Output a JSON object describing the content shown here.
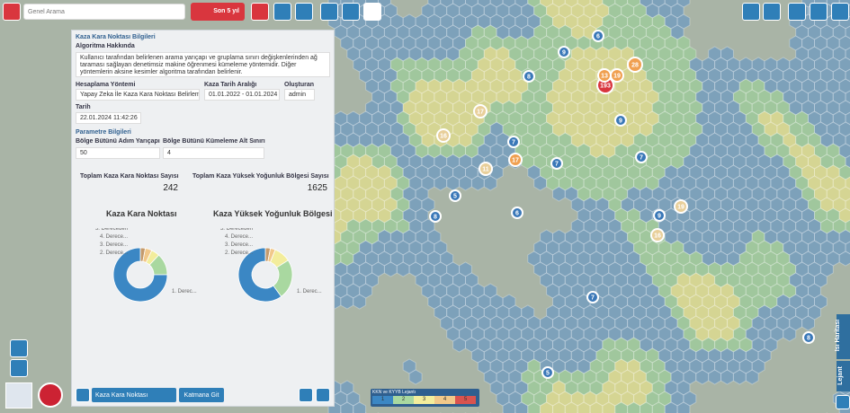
{
  "toolbar": {
    "search_placeholder": "Genel Arama",
    "period": "Son 5 yıl"
  },
  "panel": {
    "title": "Kaza Kara Noktası Bilgileri",
    "about_heading": "Algoritma Hakkında",
    "about_text": "Kullanıcı tarafından belirlenen arama yarıçapı ve gruplama sınırı değişkenlerinden ağ taraması sağlayan denetimsiz makine öğrenmesi kümeleme yöntemidir. Diğer yöntemlerin aksine kesimler algoritma tarafından belirlenir.",
    "method_label": "Hesaplama Yöntemi",
    "method_value": "Yapay Zeka İle Kaza Kara Noktası Belirleme",
    "date_range_label": "Kaza Tarih Aralığı",
    "date_range_value": "01.01.2022 - 01.01.2024",
    "creator_label": "Oluşturan",
    "creator_value": "admin",
    "date_label": "Tarih",
    "date_value": "22.01.2024 11:42:26",
    "params_heading": "Parametre Bilgileri",
    "radius_label": "Bölge Bütünü Adım Yarıçapı",
    "radius_value": "50",
    "min_cluster_label": "Bölge Bütünü Kümeleme Alt Sınırı",
    "min_cluster_value": "4",
    "total_kkn_label": "Toplam Kaza Kara Noktası Sayısı",
    "total_kkn_value": "242",
    "total_kyyb_label": "Toplam Kaza Yüksek Yoğunluk Bölgesi Sayısı",
    "total_kyyb_value": "1625"
  },
  "charts": [
    {
      "type": "pie",
      "title": "Kaza Kara Noktası",
      "labels": [
        "5. Dereceden",
        "4. Derece...",
        "3. Derece...",
        "2. Derece...",
        "1. Derec..."
      ],
      "values": [
        3,
        4,
        5,
        13,
        75
      ],
      "colors": [
        "#c49a6c",
        "#f1c88a",
        "#f3ed9c",
        "#a9d8a0",
        "#3b87c4"
      ]
    },
    {
      "type": "pie",
      "title": "Kaza Yüksek Yoğunluk Bölgesi",
      "labels": [
        "5. Dereceden",
        "4. Derece...",
        "3. Derece...",
        "2. Derece...",
        "1. Derec..."
      ],
      "values": [
        3,
        3,
        10,
        24,
        60
      ],
      "colors": [
        "#c49a6c",
        "#f1c88a",
        "#f3ed9c",
        "#a9d8a0",
        "#3b87c4"
      ]
    }
  ],
  "bottom_bar": {
    "layer": "Kaza Kara Noktası",
    "go_to_layer": "Katmana Git"
  },
  "side_tabs": [
    "Isı Haritası",
    "Lejant"
  ],
  "legend": {
    "title": "KKN ve KYYB Lejantı",
    "levels": [
      "1",
      "2",
      "3",
      "4",
      "5"
    ],
    "colors": [
      "#3b87c4",
      "#a9d8a0",
      "#f3ed9c",
      "#f1c88a",
      "#d9534f"
    ]
  },
  "map_clusters": [
    "193",
    "28",
    "13",
    "19",
    "9",
    "6",
    "8",
    "17",
    "11",
    "16",
    "16",
    "19",
    "7",
    "7",
    "9",
    "8",
    "7",
    "8",
    "5",
    "5",
    "7",
    "9",
    "6",
    "17"
  ]
}
